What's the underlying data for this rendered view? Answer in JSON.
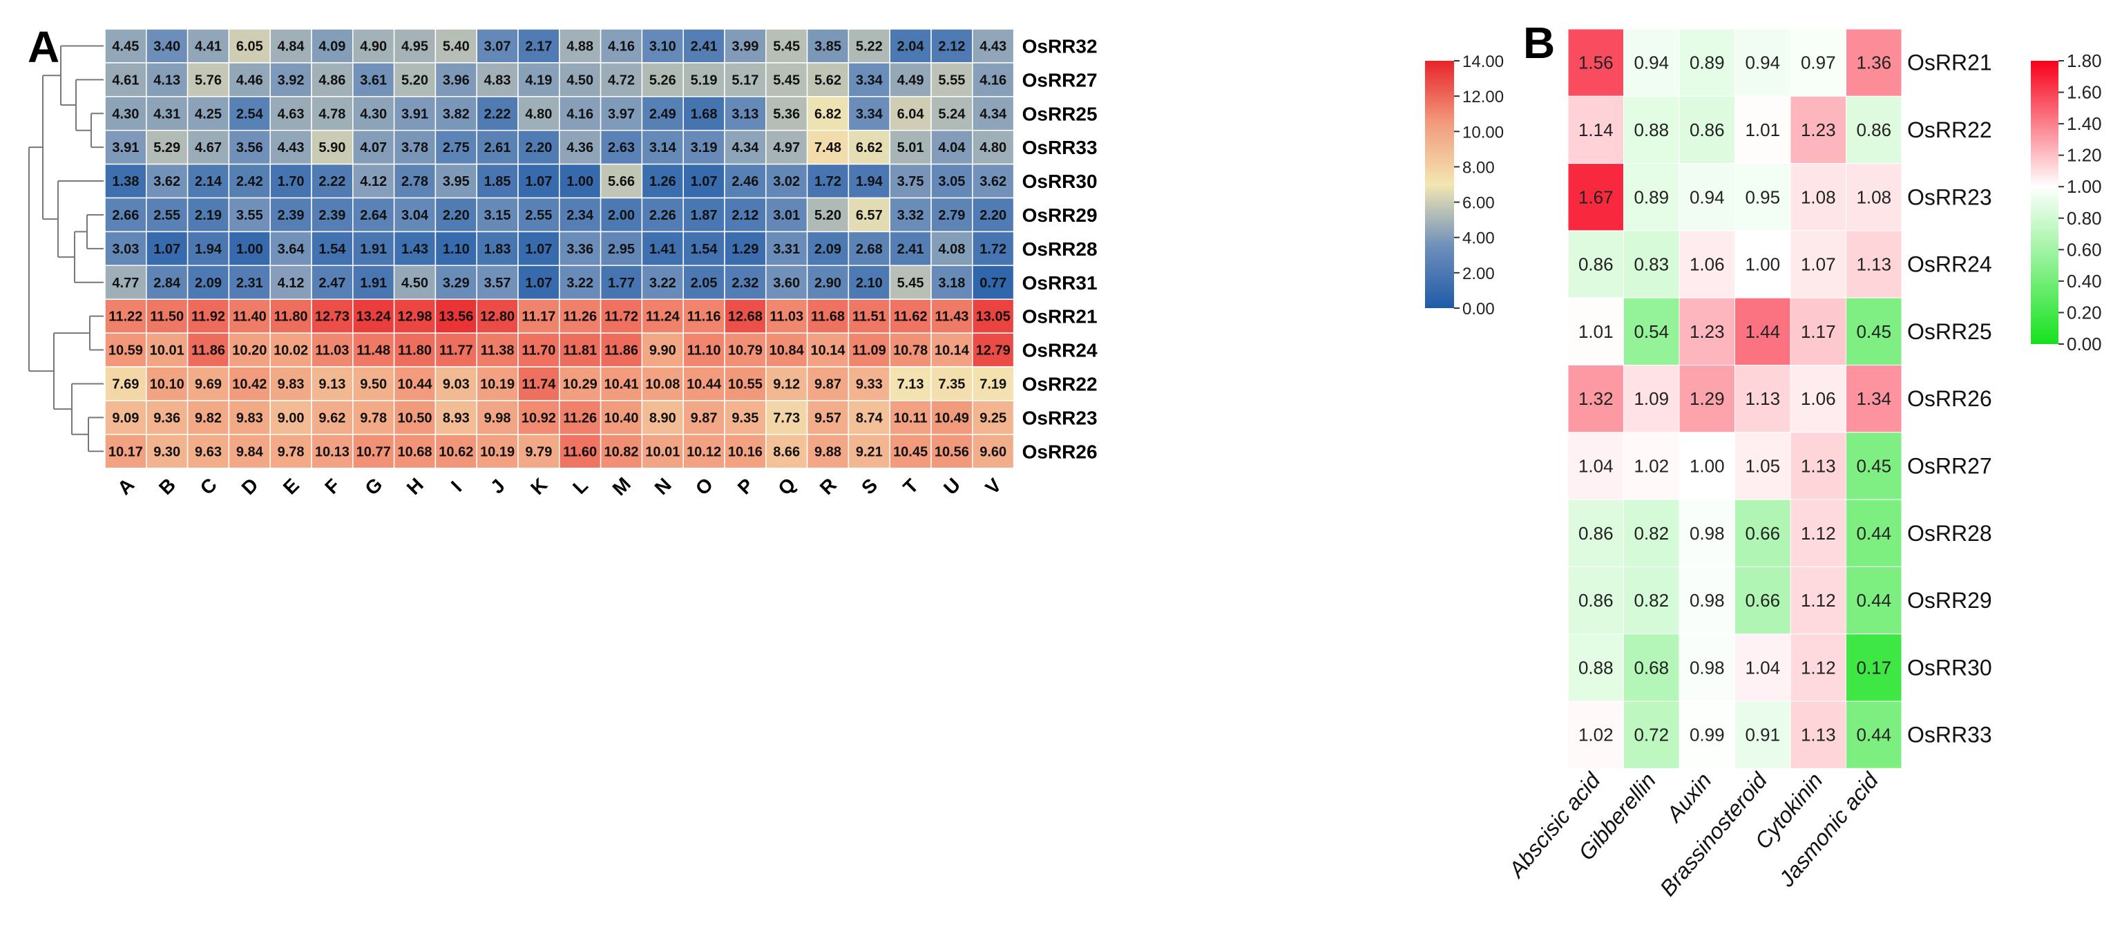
{
  "chart_data": [
    {
      "panel_label": "A",
      "type": "heatmap",
      "columns": [
        "A",
        "B",
        "C",
        "D",
        "E",
        "F",
        "G",
        "H",
        "I",
        "J",
        "K",
        "L",
        "M",
        "N",
        "O",
        "P",
        "Q",
        "R",
        "S",
        "T",
        "U",
        "V"
      ],
      "rows": [
        "OsRR32",
        "OsRR27",
        "OsRR25",
        "OsRR33",
        "OsRR30",
        "OsRR29",
        "OsRR28",
        "OsRR31",
        "OsRR21",
        "OsRR24",
        "OsRR22",
        "OsRR23",
        "OsRR26"
      ],
      "values": [
        [
          4.45,
          3.4,
          4.41,
          6.05,
          4.84,
          4.09,
          4.9,
          4.95,
          5.4,
          3.07,
          2.17,
          4.88,
          4.16,
          3.1,
          2.41,
          3.99,
          5.45,
          3.85,
          5.22,
          2.04,
          2.12,
          4.43
        ],
        [
          4.61,
          4.13,
          5.76,
          4.46,
          3.92,
          4.86,
          3.61,
          5.2,
          3.96,
          4.83,
          4.19,
          4.5,
          4.72,
          5.26,
          5.19,
          5.17,
          5.45,
          5.62,
          3.34,
          4.49,
          5.55,
          4.16
        ],
        [
          4.3,
          4.31,
          4.25,
          2.54,
          4.63,
          4.78,
          4.3,
          3.91,
          3.82,
          2.22,
          4.8,
          4.16,
          3.97,
          2.49,
          1.68,
          3.13,
          5.36,
          6.82,
          3.34,
          6.04,
          5.24,
          4.34
        ],
        [
          3.91,
          5.29,
          4.67,
          3.56,
          4.43,
          5.9,
          4.07,
          3.78,
          2.75,
          2.61,
          2.2,
          4.36,
          2.63,
          3.14,
          3.19,
          4.34,
          4.97,
          7.48,
          6.62,
          5.01,
          4.04,
          4.8
        ],
        [
          1.38,
          3.62,
          2.14,
          2.42,
          1.7,
          2.22,
          4.12,
          2.78,
          3.95,
          1.85,
          1.07,
          1.0,
          5.66,
          1.26,
          1.07,
          2.46,
          3.02,
          1.72,
          1.94,
          3.75,
          3.05,
          3.62
        ],
        [
          2.66,
          2.55,
          2.19,
          3.55,
          2.39,
          2.39,
          2.64,
          3.04,
          2.2,
          3.15,
          2.55,
          2.34,
          2.0,
          2.26,
          1.87,
          2.12,
          3.01,
          5.2,
          6.57,
          3.32,
          2.79,
          2.2
        ],
        [
          3.03,
          1.07,
          1.94,
          1.0,
          3.64,
          1.54,
          1.91,
          1.43,
          1.1,
          1.83,
          1.07,
          3.36,
          2.95,
          1.41,
          1.54,
          1.29,
          3.31,
          2.09,
          2.68,
          2.41,
          4.08,
          1.72
        ],
        [
          4.77,
          2.84,
          2.09,
          2.31,
          4.12,
          2.47,
          1.91,
          4.5,
          3.29,
          3.57,
          1.07,
          3.22,
          1.77,
          3.22,
          2.05,
          2.32,
          3.6,
          2.9,
          2.1,
          5.45,
          3.18,
          0.77
        ],
        [
          11.22,
          11.5,
          11.92,
          11.4,
          11.8,
          12.73,
          13.24,
          12.98,
          13.56,
          12.8,
          11.17,
          11.26,
          11.72,
          11.24,
          11.16,
          12.68,
          11.03,
          11.68,
          11.51,
          11.62,
          11.43,
          13.05
        ],
        [
          10.59,
          10.01,
          11.86,
          10.2,
          10.02,
          11.03,
          11.48,
          11.8,
          11.77,
          11.38,
          11.7,
          11.81,
          11.86,
          9.9,
          11.1,
          10.79,
          10.84,
          10.14,
          11.09,
          10.78,
          10.14,
          12.79
        ],
        [
          7.69,
          10.1,
          9.69,
          10.42,
          9.83,
          9.13,
          9.5,
          10.44,
          9.03,
          10.19,
          11.74,
          10.29,
          10.41,
          10.08,
          10.44,
          10.55,
          9.12,
          9.87,
          9.33,
          7.13,
          7.35,
          7.19
        ],
        [
          9.09,
          9.36,
          9.82,
          9.83,
          9.0,
          9.62,
          9.78,
          10.5,
          8.93,
          9.98,
          10.92,
          11.26,
          10.4,
          8.9,
          9.87,
          9.35,
          7.73,
          9.57,
          8.74,
          10.11,
          10.49,
          9.25
        ],
        [
          10.17,
          9.3,
          9.63,
          9.84,
          9.78,
          10.13,
          10.77,
          10.68,
          10.62,
          10.19,
          9.79,
          11.6,
          10.82,
          10.01,
          10.12,
          10.16,
          8.66,
          9.88,
          9.21,
          10.45,
          10.56,
          9.6
        ]
      ],
      "color_scale": {
        "min": 0,
        "max": 14,
        "stops": [
          "#1f5ba8",
          "#6e8fba",
          "#f3e6b2",
          "#f29a7c",
          "#e8242a"
        ]
      },
      "legend_ticks": [
        "14.00",
        "12.00",
        "10.00",
        "8.00",
        "6.00",
        "4.00",
        "2.00",
        "0.00"
      ],
      "legend_placement": "right",
      "dendrogram": "left"
    },
    {
      "panel_label": "B",
      "type": "heatmap",
      "columns": [
        "Abscisic acid",
        "Gibberellin",
        "Auxin",
        "Brassinosteroid",
        "Cytokinin",
        "Jasmonic acid"
      ],
      "rows": [
        "OsRR21",
        "OsRR22",
        "OsRR23",
        "OsRR24",
        "OsRR25",
        "OsRR26",
        "OsRR27",
        "OsRR28",
        "OsRR29",
        "OsRR30",
        "OsRR33"
      ],
      "values": [
        [
          1.56,
          0.94,
          0.89,
          0.94,
          0.97,
          1.36
        ],
        [
          1.14,
          0.88,
          0.86,
          1.01,
          1.23,
          0.86
        ],
        [
          1.67,
          0.89,
          0.94,
          0.95,
          1.08,
          1.08
        ],
        [
          0.86,
          0.83,
          1.06,
          1.0,
          1.07,
          1.13
        ],
        [
          1.01,
          0.54,
          1.23,
          1.44,
          1.17,
          0.45
        ],
        [
          1.32,
          1.09,
          1.29,
          1.13,
          1.06,
          1.34
        ],
        [
          1.04,
          1.02,
          1.0,
          1.05,
          1.13,
          0.45
        ],
        [
          0.86,
          0.82,
          0.98,
          0.66,
          1.12,
          0.44
        ],
        [
          0.86,
          0.82,
          0.98,
          0.66,
          1.12,
          0.44
        ],
        [
          0.88,
          0.68,
          0.98,
          1.04,
          1.12,
          0.17
        ],
        [
          1.02,
          0.72,
          0.99,
          0.91,
          1.13,
          0.44
        ]
      ],
      "color_scale": {
        "min": 0,
        "max": 1.8,
        "mid": 1.0,
        "stops": [
          "#16e21e",
          "#ffffff",
          "#f7001a"
        ]
      },
      "legend_ticks": [
        "1.80",
        "1.60",
        "1.40",
        "1.20",
        "1.00",
        "0.80",
        "0.60",
        "0.40",
        "0.20",
        "0.00"
      ],
      "legend_placement": "right"
    }
  ]
}
